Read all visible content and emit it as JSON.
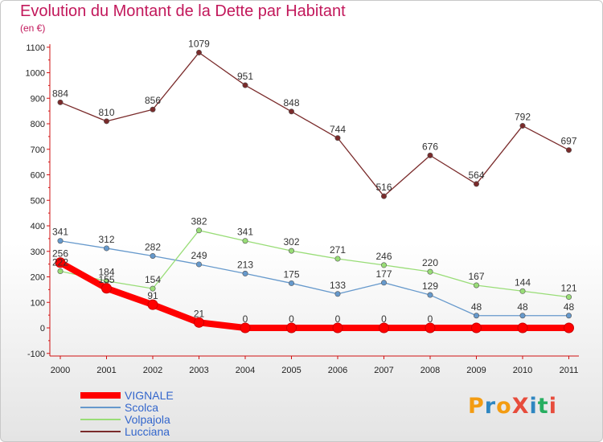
{
  "header": {
    "title": "Evolution du Montant de la Dette par Habitant",
    "subtitle": "(en €)"
  },
  "logo": {
    "text": "ProXiti",
    "colors": [
      "#f39c12",
      "#2e86c1",
      "#f39c12",
      "#e74c3c",
      "#2e86c1",
      "#27ae60",
      "#e74c3c"
    ]
  },
  "chart_data": {
    "type": "line",
    "x": [
      "2000",
      "2001",
      "2002",
      "2003",
      "2004",
      "2005",
      "2006",
      "2007",
      "2008",
      "2009",
      "2010",
      "2011"
    ],
    "ylim": [
      -100,
      1100
    ],
    "yticks": [
      "-100",
      "0",
      "100",
      "200",
      "300",
      "400",
      "500",
      "600",
      "700",
      "800",
      "900",
      "1000",
      "1100"
    ],
    "grid": false,
    "legend": "bottom-left",
    "series": [
      {
        "name": "VIGNALE",
        "color": "#ff0000",
        "values": [
          256,
          155,
          91,
          21,
          0,
          0,
          0,
          0,
          0,
          0,
          0,
          0
        ],
        "labels": [
          "256",
          "155",
          "91",
          "21",
          "0",
          "0",
          "0",
          "0",
          "0",
          "",
          "",
          ""
        ]
      },
      {
        "name": "Scolca",
        "color": "#6699cc",
        "values": [
          341,
          312,
          282,
          249,
          213,
          175,
          133,
          177,
          129,
          48,
          48,
          48
        ],
        "labels": [
          "341",
          "312",
          "282",
          "249",
          "213",
          "175",
          "133",
          "177",
          "129",
          "48",
          "48",
          "48"
        ]
      },
      {
        "name": "Volpajola",
        "color": "#99dd77",
        "values": [
          222,
          184,
          154,
          382,
          341,
          302,
          271,
          246,
          220,
          167,
          144,
          121
        ],
        "labels": [
          "222",
          "184",
          "154",
          "382",
          "341",
          "302",
          "271",
          "246",
          "220",
          "167",
          "144",
          "121"
        ]
      },
      {
        "name": "Lucciana",
        "color": "#7a2b2b",
        "values": [
          884,
          810,
          856,
          1079,
          951,
          848,
          744,
          516,
          676,
          564,
          792,
          697
        ],
        "labels": [
          "884",
          "810",
          "856",
          "1079",
          "951",
          "848",
          "744",
          "516",
          "676",
          "564",
          "792",
          "697"
        ]
      }
    ]
  }
}
